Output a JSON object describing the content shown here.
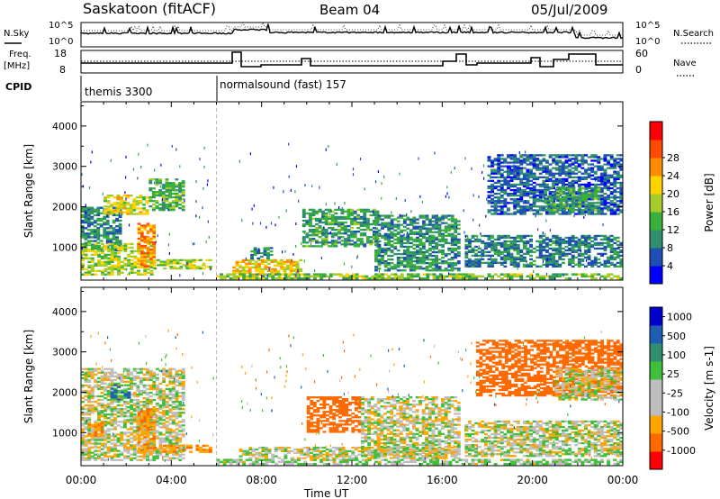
{
  "header": {
    "station": "Saskatoon (fitACF)",
    "beam": "Beam 04",
    "date": "05/Jul/2009"
  },
  "noise_panel": {
    "left_label": "N.Sky",
    "left_ticks": [
      "10^5",
      "10^0"
    ],
    "right_label": "N.Search",
    "right_ticks": [
      "10^5",
      "10^0"
    ]
  },
  "freq_panel": {
    "left_label_1": "Freq.",
    "left_label_2": "[MHz]",
    "left_ticks": [
      "18",
      "8"
    ],
    "right_label": "Nave",
    "right_ticks": [
      "60",
      "0"
    ]
  },
  "cpid": {
    "label": "CPID",
    "segments": [
      {
        "text": "themis 3300",
        "start_hour": 0
      },
      {
        "text": "normalsound (fast) 157",
        "start_hour": 6
      }
    ]
  },
  "colors": {
    "power": [
      "#0000ff",
      "#1e50b4",
      "#2f8f6f",
      "#39b03a",
      "#a6cc2a",
      "#ffd200",
      "#ff8c00",
      "#ff4b00",
      "#ff0000"
    ],
    "velocity": [
      "#0000cc",
      "#1e5fb4",
      "#2f8f6f",
      "#3fc03a",
      "#bebebe",
      "#bebebe",
      "#ffa500",
      "#ff6a00",
      "#ff0000"
    ]
  },
  "chart_data": [
    {
      "type": "heatmap",
      "title": "Power",
      "xlabel": "Time UT",
      "ylabel": "Slant Range [km]",
      "xlim": [
        0,
        24
      ],
      "ylim": [
        180,
        4600
      ],
      "x_ticks": [
        "00:00",
        "04:00",
        "08:00",
        "12:00",
        "16:00",
        "20:00",
        "00:00"
      ],
      "y_ticks": [
        1000,
        2000,
        3000,
        4000
      ],
      "colorbar_label": "Power [dB]",
      "colorbar_ticks": [
        "4",
        "8",
        "12",
        "16",
        "20",
        "24",
        "28"
      ],
      "echo_regions": [
        {
          "t0": 0.0,
          "t1": 1.8,
          "r0": 900,
          "r1": 2000,
          "value_db": 10
        },
        {
          "t0": 1.0,
          "t1": 3.0,
          "r0": 1800,
          "r1": 2300,
          "value_db": 20
        },
        {
          "t0": 3.0,
          "t1": 4.6,
          "r0": 1900,
          "r1": 2700,
          "value_db": 14
        },
        {
          "t0": 0.0,
          "t1": 3.2,
          "r0": 300,
          "r1": 1100,
          "value_db": 18
        },
        {
          "t0": 2.5,
          "t1": 3.3,
          "r0": 500,
          "r1": 1600,
          "value_db": 26
        },
        {
          "t0": 3.2,
          "t1": 5.8,
          "r0": 450,
          "r1": 700,
          "value_db": 18
        },
        {
          "t0": 6.7,
          "t1": 9.8,
          "r0": 300,
          "r1": 700,
          "value_db": 22
        },
        {
          "t0": 6.0,
          "t1": 24.0,
          "r0": 200,
          "r1": 350,
          "value_db": 16
        },
        {
          "t0": 9.8,
          "t1": 13.2,
          "r0": 1000,
          "r1": 1950,
          "value_db": 12
        },
        {
          "t0": 13.0,
          "t1": 16.8,
          "r0": 400,
          "r1": 1800,
          "value_db": 11
        },
        {
          "t0": 17.0,
          "t1": 24.0,
          "r0": 500,
          "r1": 1300,
          "value_db": 9
        },
        {
          "t0": 18.0,
          "t1": 24.0,
          "r0": 1800,
          "r1": 3300,
          "value_db": 7
        },
        {
          "t0": 7.5,
          "t1": 8.5,
          "r0": 700,
          "r1": 1000,
          "value_db": 10
        },
        {
          "t0": 20.5,
          "t1": 23.0,
          "r0": 1900,
          "r1": 2500,
          "value_db": 12
        }
      ]
    },
    {
      "type": "heatmap",
      "title": "Velocity",
      "xlabel": "Time UT",
      "ylabel": "Slant Range [km]",
      "xlim": [
        0,
        24
      ],
      "ylim": [
        180,
        4600
      ],
      "x_ticks": [
        "00:00",
        "04:00",
        "08:00",
        "12:00",
        "16:00",
        "20:00",
        "00:00"
      ],
      "y_ticks": [
        1000,
        2000,
        3000,
        4000
      ],
      "colorbar_label": "Velocity [m s-1]",
      "colorbar_ticks": [
        "1000",
        "500",
        "100",
        "25",
        "-25",
        "-100",
        "-500",
        "-1000"
      ],
      "echo_regions": [
        {
          "t0": 0.0,
          "t1": 4.6,
          "r0": 300,
          "r1": 2600,
          "value_ms": 0
        },
        {
          "t0": 1.3,
          "t1": 2.2,
          "r0": 1800,
          "r1": 2200,
          "value_ms": 100
        },
        {
          "t0": 2.5,
          "t1": 3.3,
          "r0": 500,
          "r1": 1600,
          "value_ms": -80
        },
        {
          "t0": 0.3,
          "t1": 1.0,
          "r0": 900,
          "r1": 1300,
          "value_ms": -80
        },
        {
          "t0": 3.2,
          "t1": 5.8,
          "r0": 500,
          "r1": 700,
          "value_ms": -80
        },
        {
          "t0": 6.0,
          "t1": 24.0,
          "r0": 200,
          "r1": 350,
          "value_ms": 30
        },
        {
          "t0": 7.0,
          "t1": 16.8,
          "r0": 350,
          "r1": 650,
          "value_ms": 0
        },
        {
          "t0": 10.0,
          "t1": 12.4,
          "r0": 1000,
          "r1": 1900,
          "value_ms": -300
        },
        {
          "t0": 12.4,
          "t1": 16.8,
          "r0": 400,
          "r1": 1900,
          "value_ms": 0
        },
        {
          "t0": 17.0,
          "t1": 24.0,
          "r0": 400,
          "r1": 1300,
          "value_ms": 0
        },
        {
          "t0": 17.5,
          "t1": 24.0,
          "r0": 1900,
          "r1": 3300,
          "value_ms": -300
        },
        {
          "t0": 21.0,
          "t1": 24.0,
          "r0": 1800,
          "r1": 2600,
          "value_ms": 0
        }
      ]
    }
  ]
}
